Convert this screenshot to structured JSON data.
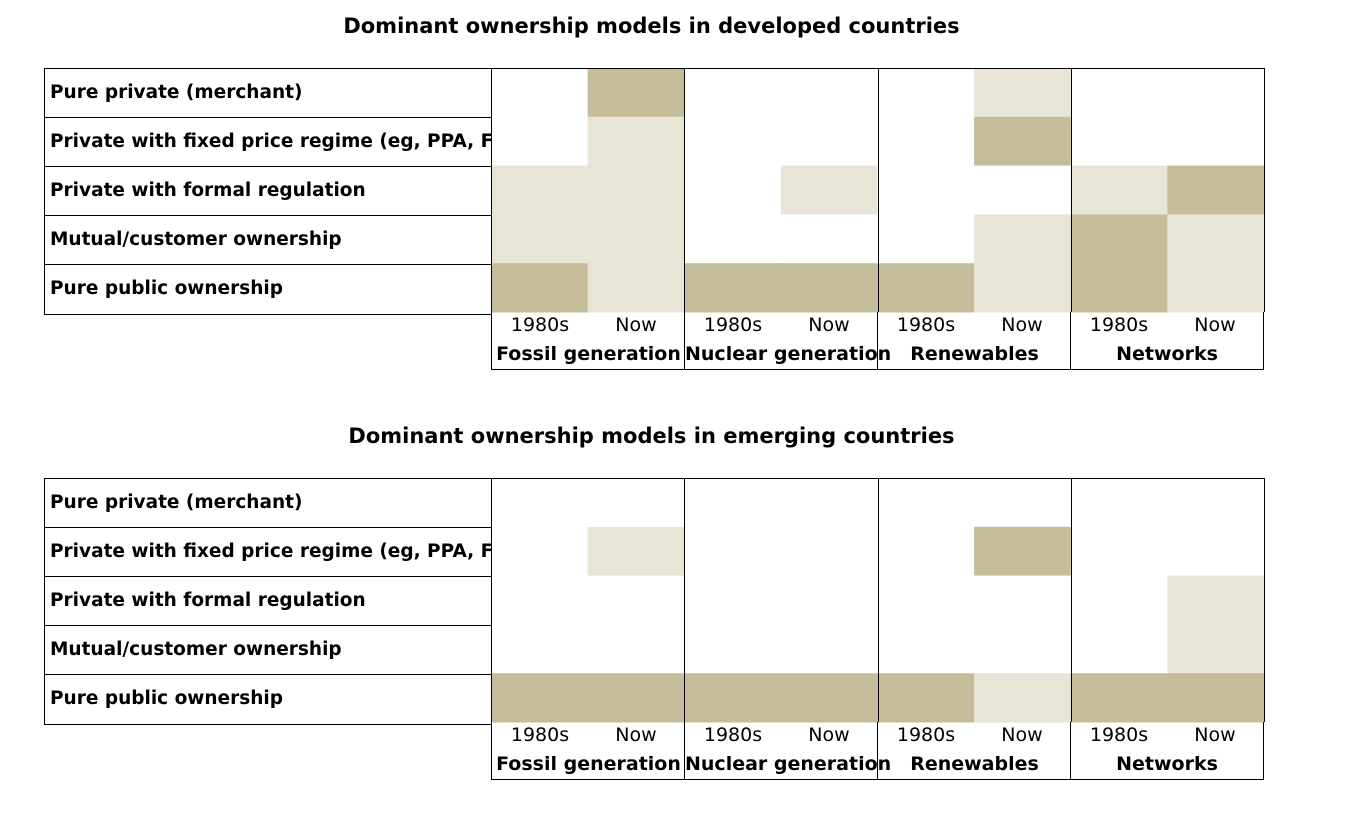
{
  "chart_data": [
    {
      "type": "heatmap",
      "title": "Dominant ownership models in developed countries",
      "rows": [
        "Pure private (merchant)",
        "Private with fixed price regime (eg, PPA, FiT)",
        "Private with formal regulation",
        "Mutual/customer ownership",
        "Pure public ownership"
      ],
      "groups": [
        "Fossil generation",
        "Nuclear generation",
        "Renewables",
        "Networks"
      ],
      "periods": [
        "1980s",
        "Now"
      ],
      "legend_levels": {
        "0": "none",
        "1": "light",
        "2": "dark"
      },
      "colors": {
        "none": "#ffffff",
        "light": "#e8e4d6",
        "dark": "#c5bd99"
      },
      "values": [
        [
          0,
          2,
          0,
          0,
          0,
          1,
          0,
          0
        ],
        [
          0,
          1,
          0,
          0,
          0,
          2,
          0,
          0
        ],
        [
          1,
          1,
          0,
          1,
          0,
          0,
          1,
          2
        ],
        [
          1,
          1,
          0,
          0,
          0,
          1,
          2,
          1
        ],
        [
          2,
          1,
          2,
          2,
          2,
          1,
          2,
          1
        ]
      ]
    },
    {
      "type": "heatmap",
      "title": "Dominant ownership models in emerging countries",
      "rows": [
        "Pure private (merchant)",
        "Private with fixed price regime (eg, PPA, FiT)",
        "Private with formal regulation",
        "Mutual/customer ownership",
        "Pure public ownership"
      ],
      "groups": [
        "Fossil generation",
        "Nuclear generation",
        "Renewables",
        "Networks"
      ],
      "periods": [
        "1980s",
        "Now"
      ],
      "legend_levels": {
        "0": "none",
        "1": "light",
        "2": "dark"
      },
      "colors": {
        "none": "#ffffff",
        "light": "#e8e4d6",
        "dark": "#c5bd99"
      },
      "values": [
        [
          0,
          0,
          0,
          0,
          0,
          0,
          0,
          0
        ],
        [
          0,
          1,
          0,
          0,
          0,
          2,
          0,
          0
        ],
        [
          0,
          0,
          0,
          0,
          0,
          0,
          0,
          1
        ],
        [
          0,
          0,
          0,
          0,
          0,
          0,
          0,
          1
        ],
        [
          2,
          2,
          2,
          2,
          2,
          1,
          2,
          2
        ]
      ]
    }
  ]
}
